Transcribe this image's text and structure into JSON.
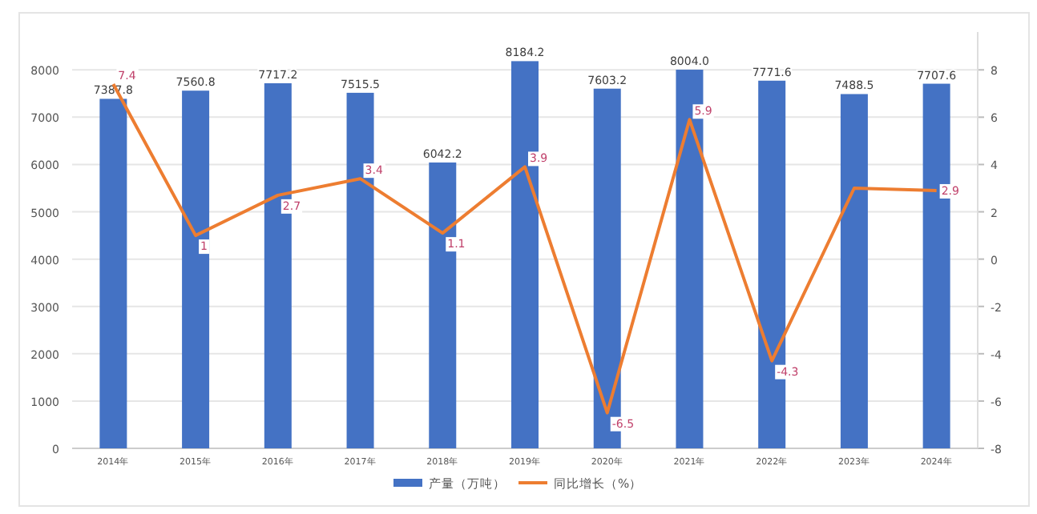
{
  "chart_data": {
    "type": "bar",
    "categories": [
      "2014年",
      "2015年",
      "2016年",
      "2017年",
      "2018年",
      "2019年",
      "2020年",
      "2021年",
      "2022年",
      "2023年",
      "2024年"
    ],
    "series": [
      {
        "name": "产量（万吨）",
        "color": "#4472c4",
        "values": [
          7387.8,
          7560.8,
          7717.2,
          7515.5,
          6042.2,
          8184.2,
          7603.2,
          8004,
          7771.6,
          7488.5,
          7707.6
        ],
        "data_labels": true,
        "value_labels": [
          "7387.8",
          "7560.8",
          "7717.2",
          "7515.5",
          "6042.2",
          "8184.2",
          "7603.2",
          "8004.0",
          "7771.6",
          "7488.5",
          "7707.6"
        ]
      },
      {
        "name": "同比增长（%）",
        "type": "line",
        "axis": "y2",
        "color": "#ed7d31",
        "values": [
          7.4,
          1.0,
          2.7,
          3.4,
          1.1,
          3.9,
          -6.5,
          5.9,
          -4.3,
          3.0,
          2.9
        ],
        "value_labels": [
          "7.4",
          "1",
          "2.7",
          "3.4",
          "1.1",
          "3.9",
          "-6.5",
          "5.9",
          "-4.3",
          null,
          "2.9"
        ]
      }
    ],
    "ylim": [
      0,
      8800
    ],
    "yticks": [
      0,
      1000,
      2000,
      3000,
      4000,
      5000,
      6000,
      7000,
      8000
    ],
    "y2lim": [
      -8,
      9.6
    ],
    "y2ticks": [
      -8,
      -6,
      -4,
      -2,
      0,
      2,
      4,
      6,
      8
    ],
    "grid": "y",
    "legend": "bottom",
    "marker": "none",
    "line_style": "solid"
  }
}
